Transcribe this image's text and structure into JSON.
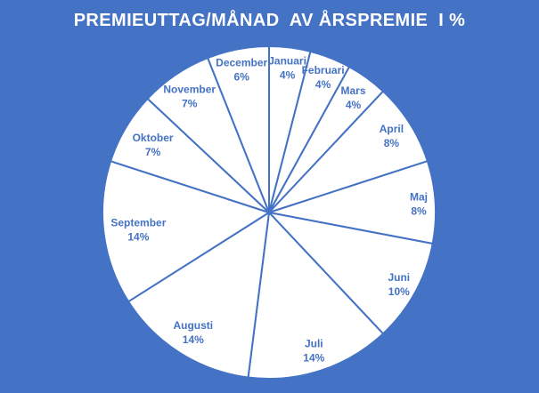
{
  "colors": {
    "background": "#4472C4",
    "pie_fill": "#FFFFFF",
    "pie_line": "#4472C4",
    "data_label": "#4472C4",
    "title": "#FFFFFF"
  },
  "chart_data": {
    "type": "pie",
    "title": "PREMIEUTTAG/MÅNAD  AV ÅRSPREMIE  I %",
    "categories": [
      "Januari",
      "Februari",
      "Mars",
      "April",
      "Maj",
      "Juni",
      "Juli",
      "Augusti",
      "September",
      "Oktober",
      "November",
      "December"
    ],
    "values": [
      4,
      4,
      4,
      8,
      8,
      10,
      14,
      14,
      14,
      7,
      7,
      6
    ],
    "unit": "%",
    "start_angle_deg": 0,
    "direction": "clockwise",
    "legend": "none",
    "data_labels": "category-and-percent-inside-slices"
  }
}
